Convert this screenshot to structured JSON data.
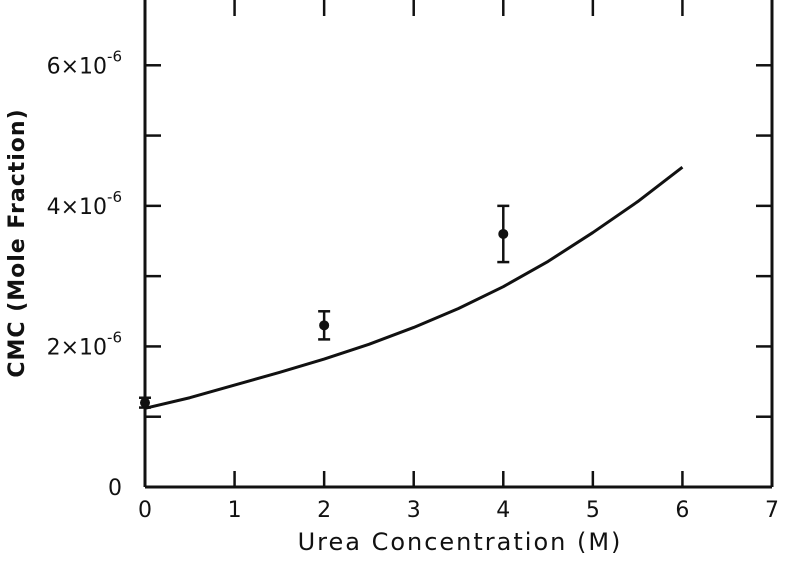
{
  "chart_data": {
    "type": "line",
    "xlabel": "Urea Concentration (M)",
    "ylabel": "CMC (Mole Fraction)",
    "xlim": [
      0,
      7
    ],
    "ylim": [
      0,
      7e-06
    ],
    "x_ticks": [
      0,
      1,
      2,
      3,
      4,
      5,
      6,
      7
    ],
    "x_tick_labels": [
      "0",
      "1",
      "2",
      "3",
      "4",
      "5",
      "6",
      "7"
    ],
    "y_ticks": [
      0,
      1e-06,
      2e-06,
      3e-06,
      4e-06,
      5e-06,
      6e-06,
      7e-06
    ],
    "y_tick_labels": [
      {
        "value": 0,
        "mantissa": "0",
        "exponent": ""
      },
      {
        "value": 2e-06,
        "mantissa": "2×10",
        "exponent": "-6"
      },
      {
        "value": 4e-06,
        "mantissa": "4×10",
        "exponent": "-6"
      },
      {
        "value": 6e-06,
        "mantissa": "6×10",
        "exponent": "-6"
      }
    ],
    "grid": false,
    "series": [
      {
        "kind": "curve",
        "x": [
          0,
          0.5,
          1,
          1.5,
          2,
          2.5,
          3,
          3.5,
          4,
          4.5,
          5,
          5.5,
          6
        ],
        "y": [
          1.12e-06,
          1.27e-06,
          1.45e-06,
          1.63e-06,
          1.82e-06,
          2.03e-06,
          2.27e-06,
          2.54e-06,
          2.85e-06,
          3.21e-06,
          3.62e-06,
          4.06e-06,
          4.55e-06
        ]
      },
      {
        "kind": "points",
        "x": [
          0,
          2,
          4
        ],
        "y": [
          1.2e-06,
          2.3e-06,
          3.6e-06
        ],
        "error_low": [
          1.13e-06,
          2.1e-06,
          3.2e-06
        ],
        "error_high": [
          1.27e-06,
          2.5e-06,
          4e-06
        ]
      }
    ]
  }
}
